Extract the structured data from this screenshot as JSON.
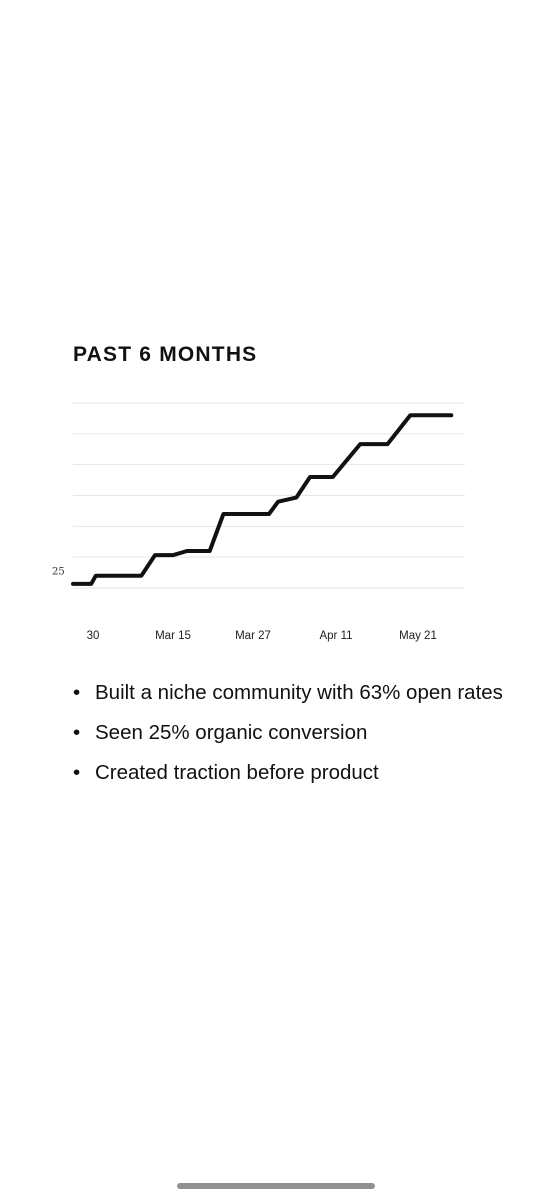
{
  "heading": "PAST 6 MONTHS",
  "bullets": [
    "Built a niche community with 63% open rates",
    "Seen 25% organic conversion",
    "Created traction before product"
  ],
  "chart_data": {
    "type": "line",
    "title": "PAST 6 MONTHS",
    "xlabel": "",
    "ylabel": "",
    "grid": true,
    "legend": "none",
    "line_color": "#111111",
    "grid_color": "#e6e6e6",
    "x_ticks": [
      "30",
      "Mar 15",
      "Mar 27",
      "Apr 11",
      "May 21"
    ],
    "y_ticks": [
      {
        "label": "25",
        "value": 25
      }
    ],
    "ylim": [
      21,
      66
    ],
    "series": [
      {
        "points": [
          {
            "x": "Feb 27",
            "y": 22
          },
          {
            "x": "Mar 2",
            "y": 22
          },
          {
            "x": "Mar 3",
            "y": 24
          },
          {
            "x": "Mar 13",
            "y": 24
          },
          {
            "x": "Mar 16",
            "y": 29
          },
          {
            "x": "Mar 20",
            "y": 29
          },
          {
            "x": "Mar 23",
            "y": 30
          },
          {
            "x": "Mar 28",
            "y": 30
          },
          {
            "x": "Mar 31",
            "y": 39
          },
          {
            "x": "Apr 10",
            "y": 39
          },
          {
            "x": "Apr 12",
            "y": 42
          },
          {
            "x": "Apr 16",
            "y": 43
          },
          {
            "x": "Apr 19",
            "y": 48
          },
          {
            "x": "Apr 24",
            "y": 48
          },
          {
            "x": "Apr 30",
            "y": 56
          },
          {
            "x": "May 6",
            "y": 56
          },
          {
            "x": "May 11",
            "y": 63
          },
          {
            "x": "May 20",
            "y": 63
          }
        ]
      }
    ]
  }
}
